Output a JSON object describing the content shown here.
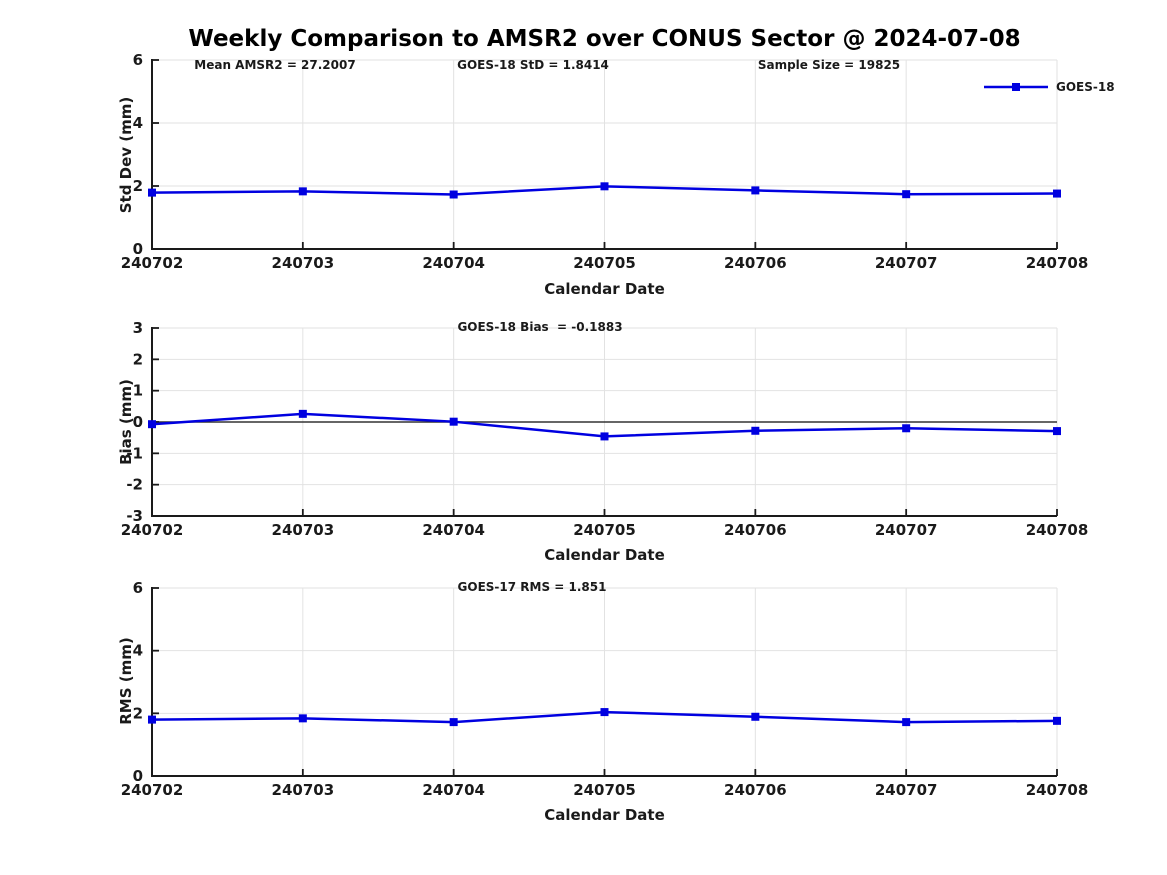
{
  "figure": {
    "title": "Weekly Comparison to AMSR2 over CONUS Sector @ 2024-07-08"
  },
  "legend": {
    "label": "GOES-18",
    "color": "#0000E0"
  },
  "colors": {
    "series_blue": "#0000E0",
    "axis": "#1a1a1a",
    "gridline": "#e2e2e2",
    "zero_line": "#333333",
    "background": "#ffffff"
  },
  "chart_data": [
    {
      "type": "line",
      "ylabel": "Std Dev (mm)",
      "xlabel": "Calendar Date",
      "categories": [
        "240702",
        "240703",
        "240704",
        "240705",
        "240706",
        "240707",
        "240708"
      ],
      "series": [
        {
          "name": "GOES-18",
          "color": "#0000E0",
          "marker": "square",
          "values": [
            1.79,
            1.83,
            1.73,
            1.99,
            1.86,
            1.74,
            1.76
          ]
        }
      ],
      "ylim": [
        0,
        6
      ],
      "yticks": [
        0,
        2,
        4,
        6
      ],
      "grid": true,
      "zero_line": false,
      "legend_position": "top-right-outside",
      "annotations": [
        "Mean AMSR2 = 27.2007",
        "GOES-18 StD = 1.8414",
        "Sample Size = 19825"
      ]
    },
    {
      "type": "line",
      "ylabel": "Bias (mm)",
      "xlabel": "Calendar Date",
      "categories": [
        "240702",
        "240703",
        "240704",
        "240705",
        "240706",
        "240707",
        "240708"
      ],
      "series": [
        {
          "name": "GOES-18",
          "color": "#0000E0",
          "marker": "square",
          "values": [
            -0.07,
            0.26,
            0.01,
            -0.46,
            -0.28,
            -0.2,
            -0.29
          ]
        }
      ],
      "ylim": [
        -3,
        3
      ],
      "yticks": [
        -3,
        -2,
        -1,
        0,
        1,
        2,
        3
      ],
      "grid": true,
      "zero_line": true,
      "annotations": [
        "GOES-18 Bias  = -0.1883"
      ]
    },
    {
      "type": "line",
      "ylabel": "RMS (mm)",
      "xlabel": "Calendar Date",
      "categories": [
        "240702",
        "240703",
        "240704",
        "240705",
        "240706",
        "240707",
        "240708"
      ],
      "series": [
        {
          "name": "GOES-18",
          "color": "#0000E0",
          "marker": "square",
          "values": [
            1.8,
            1.84,
            1.72,
            2.04,
            1.89,
            1.72,
            1.76
          ]
        }
      ],
      "ylim": [
        0,
        6
      ],
      "yticks": [
        0,
        2,
        4,
        6
      ],
      "grid": true,
      "zero_line": false,
      "annotations": [
        "GOES-17 RMS = 1.851"
      ]
    }
  ]
}
